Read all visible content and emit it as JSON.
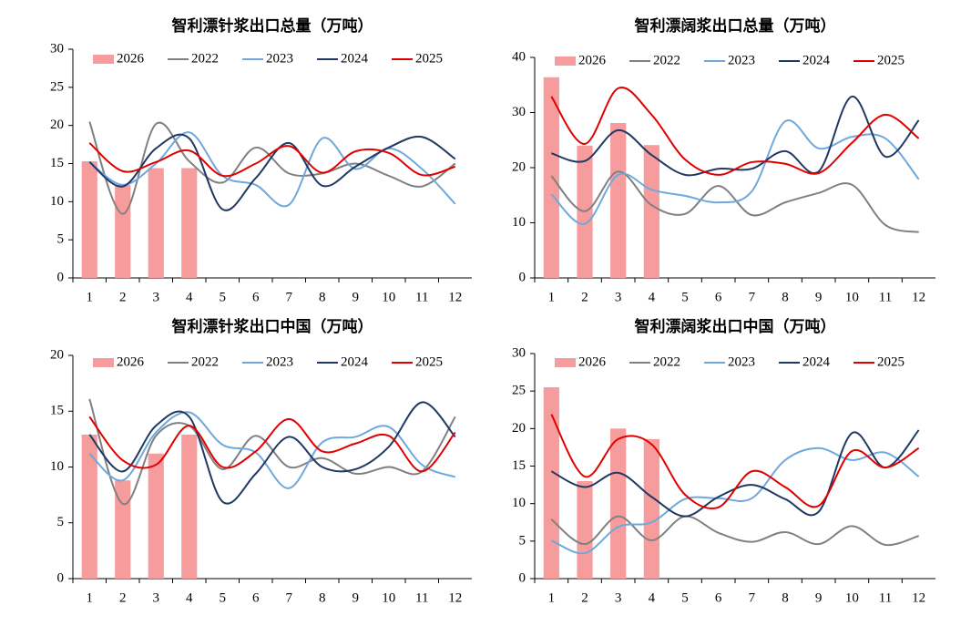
{
  "chart_data": [
    {
      "type": "combo",
      "title": "智利漂针浆出口总量（万吨）",
      "categories": [
        "1",
        "2",
        "3",
        "4",
        "5",
        "6",
        "7",
        "8",
        "9",
        "10",
        "11",
        "12"
      ],
      "ylim": [
        0,
        30
      ],
      "yticks": [
        0,
        5,
        10,
        15,
        20,
        25,
        30
      ],
      "series": [
        {
          "name": "2026",
          "type": "bar",
          "color": "#f79c9c",
          "values": [
            15.3,
            12.2,
            14.4,
            14.4,
            null,
            null,
            null,
            null,
            null,
            null,
            null,
            null
          ]
        },
        {
          "name": "2022",
          "type": "line",
          "color": "#808080",
          "values": [
            20.5,
            8.4,
            20.2,
            15.3,
            12.5,
            17.1,
            13.7,
            13.7,
            15.0,
            13.4,
            12.0,
            15.0
          ]
        },
        {
          "name": "2023",
          "type": "line",
          "color": "#6fa8dc",
          "values": [
            15.2,
            12.2,
            15.0,
            19.1,
            13.4,
            12.2,
            9.6,
            18.3,
            14.3,
            17.0,
            14.3,
            9.7
          ]
        },
        {
          "name": "2024",
          "type": "line",
          "color": "#1f3864",
          "values": [
            15.2,
            12.0,
            17.0,
            18.3,
            9.0,
            13.1,
            17.7,
            12.1,
            14.6,
            17.1,
            18.5,
            15.6
          ]
        },
        {
          "name": "2025",
          "type": "line",
          "color": "#e00000",
          "values": [
            17.7,
            14.0,
            15.2,
            16.7,
            13.4,
            15.0,
            17.3,
            13.8,
            16.6,
            16.4,
            13.5,
            14.6
          ]
        }
      ]
    },
    {
      "type": "combo",
      "title": "智利漂阔浆出口总量（万吨）",
      "categories": [
        "1",
        "2",
        "3",
        "4",
        "5",
        "6",
        "7",
        "8",
        "9",
        "10",
        "11",
        "12"
      ],
      "ylim": [
        0,
        40
      ],
      "yticks": [
        0,
        10,
        20,
        30,
        40
      ],
      "series": [
        {
          "name": "2026",
          "type": "bar",
          "color": "#f79c9c",
          "values": [
            36.4,
            24.0,
            28.1,
            24.1,
            null,
            null,
            null,
            null,
            null,
            null,
            null,
            null
          ]
        },
        {
          "name": "2022",
          "type": "line",
          "color": "#808080",
          "values": [
            18.5,
            12.1,
            19.3,
            13.2,
            11.6,
            16.7,
            11.4,
            13.7,
            15.4,
            16.9,
            9.6,
            8.3
          ]
        },
        {
          "name": "2023",
          "type": "line",
          "color": "#6fa8dc",
          "values": [
            15.2,
            9.8,
            18.7,
            16.0,
            14.9,
            13.7,
            15.7,
            28.4,
            23.5,
            25.6,
            25.3,
            17.9
          ]
        },
        {
          "name": "2024",
          "type": "line",
          "color": "#1f3864",
          "values": [
            22.6,
            21.2,
            26.8,
            22.3,
            18.7,
            19.8,
            19.8,
            23.0,
            19.3,
            32.9,
            22.0,
            28.6
          ]
        },
        {
          "name": "2025",
          "type": "line",
          "color": "#e00000",
          "values": [
            32.9,
            24.3,
            34.4,
            29.6,
            21.5,
            18.7,
            21.0,
            20.7,
            19.0,
            24.5,
            29.6,
            25.3
          ]
        }
      ]
    },
    {
      "type": "combo",
      "title": "智利漂针浆出口中国（万吨）",
      "categories": [
        "1",
        "2",
        "3",
        "4",
        "5",
        "6",
        "7",
        "8",
        "9",
        "10",
        "11",
        "12"
      ],
      "ylim": [
        0,
        20
      ],
      "yticks": [
        0,
        5,
        10,
        15,
        20
      ],
      "series": [
        {
          "name": "2026",
          "type": "bar",
          "color": "#f79c9c",
          "values": [
            12.9,
            8.8,
            11.2,
            12.9,
            null,
            null,
            null,
            null,
            null,
            null,
            null,
            null
          ]
        },
        {
          "name": "2022",
          "type": "line",
          "color": "#808080",
          "values": [
            16.1,
            6.7,
            12.8,
            13.7,
            9.8,
            12.8,
            10.0,
            10.8,
            9.4,
            10.0,
            9.6,
            14.5
          ]
        },
        {
          "name": "2023",
          "type": "line",
          "color": "#6fa8dc",
          "values": [
            11.2,
            8.8,
            13.1,
            14.9,
            12.0,
            11.3,
            8.1,
            12.2,
            12.7,
            13.6,
            10.2,
            9.1
          ]
        },
        {
          "name": "2024",
          "type": "line",
          "color": "#1f3864",
          "values": [
            12.9,
            9.6,
            13.7,
            14.5,
            6.9,
            9.4,
            12.7,
            10.0,
            9.8,
            11.8,
            15.8,
            12.7
          ]
        },
        {
          "name": "2025",
          "type": "line",
          "color": "#e00000",
          "values": [
            14.5,
            10.6,
            10.2,
            13.7,
            10.0,
            11.4,
            14.3,
            11.4,
            12.1,
            12.8,
            9.6,
            13.1
          ]
        }
      ]
    },
    {
      "type": "combo",
      "title": "智利漂阔浆出口中国（万吨）",
      "categories": [
        "1",
        "2",
        "3",
        "4",
        "5",
        "6",
        "7",
        "8",
        "9",
        "10",
        "11",
        "12"
      ],
      "ylim": [
        0,
        30
      ],
      "yticks": [
        0,
        5,
        10,
        15,
        20,
        25,
        30
      ],
      "series": [
        {
          "name": "2026",
          "type": "bar",
          "color": "#f79c9c",
          "values": [
            25.5,
            13.0,
            20.0,
            18.6,
            null,
            null,
            null,
            null,
            null,
            null,
            null,
            null
          ]
        },
        {
          "name": "2022",
          "type": "line",
          "color": "#808080",
          "values": [
            7.9,
            4.6,
            8.3,
            5.1,
            8.3,
            6.1,
            4.9,
            6.2,
            4.6,
            7.0,
            4.5,
            5.7
          ]
        },
        {
          "name": "2023",
          "type": "line",
          "color": "#6fa8dc",
          "values": [
            5.1,
            3.4,
            6.9,
            7.5,
            10.6,
            10.7,
            10.7,
            15.8,
            17.4,
            15.8,
            16.8,
            13.6
          ]
        },
        {
          "name": "2024",
          "type": "line",
          "color": "#1f3864",
          "values": [
            14.3,
            12.2,
            14.1,
            10.9,
            8.3,
            10.9,
            12.5,
            10.6,
            8.9,
            19.4,
            14.8,
            19.8
          ]
        },
        {
          "name": "2025",
          "type": "line",
          "color": "#e00000",
          "values": [
            21.9,
            13.6,
            18.6,
            17.9,
            11.2,
            9.5,
            14.3,
            12.2,
            9.7,
            17.0,
            14.8,
            17.4
          ]
        }
      ]
    }
  ]
}
